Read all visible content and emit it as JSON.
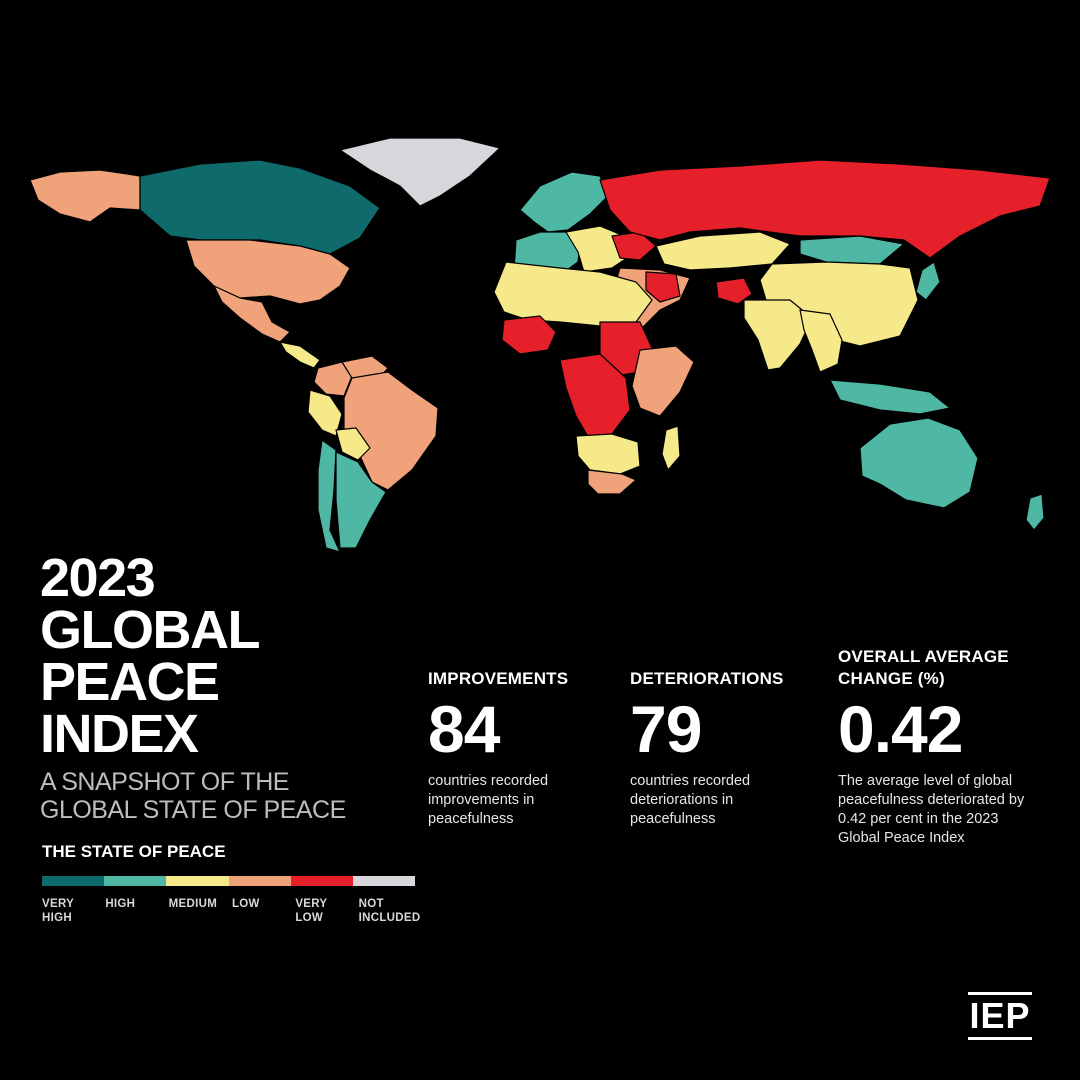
{
  "title_lines": [
    "2023",
    "GLOBAL",
    "PEACE",
    "INDEX"
  ],
  "subtitle_lines": [
    "A SNAPSHOT OF THE",
    "GLOBAL STATE OF PEACE"
  ],
  "legend": {
    "title": "THE STATE OF PEACE",
    "categories": [
      {
        "label": "VERY\nHIGH",
        "color": "#0f6b6b"
      },
      {
        "label": "HIGH",
        "color": "#4fb8a4"
      },
      {
        "label": "MEDIUM",
        "color": "#f5e98a"
      },
      {
        "label": "LOW",
        "color": "#f0a27a"
      },
      {
        "label": "VERY\nLOW",
        "color": "#e5202a"
      },
      {
        "label": "NOT\nINCLUDED",
        "color": "#d8d5db"
      }
    ]
  },
  "stats": {
    "improvements": {
      "heading": "IMPROVEMENTS",
      "value": "84",
      "description": "countries recorded\nimprovements in\npeacefulness"
    },
    "deteriorations": {
      "heading": "DETERIORATIONS",
      "value": "79",
      "description": "countries recorded\ndeteriorations in\npeacefulness"
    },
    "overall": {
      "heading": "OVERALL AVERAGE\nCHANGE (%)",
      "value": "0.42",
      "description": "The average level of global\npeacefulness deteriorated by\n0.42 per cent in the 2023\nGlobal Peace Index"
    }
  },
  "logo": {
    "text": "IEP"
  },
  "map": {
    "regions": [
      {
        "name": "alaska",
        "level": "LOW"
      },
      {
        "name": "canada",
        "level": "VERY HIGH"
      },
      {
        "name": "greenland",
        "level": "NOT INCLUDED"
      },
      {
        "name": "usa",
        "level": "LOW"
      },
      {
        "name": "mexico",
        "level": "LOW"
      },
      {
        "name": "central-america",
        "level": "MEDIUM"
      },
      {
        "name": "colombia",
        "level": "LOW"
      },
      {
        "name": "venezuela",
        "level": "LOW"
      },
      {
        "name": "brazil",
        "level": "LOW"
      },
      {
        "name": "peru",
        "level": "MEDIUM"
      },
      {
        "name": "bolivia",
        "level": "MEDIUM"
      },
      {
        "name": "chile",
        "level": "HIGH"
      },
      {
        "name": "argentina",
        "level": "HIGH"
      },
      {
        "name": "scandinavia",
        "level": "HIGH"
      },
      {
        "name": "western-europe",
        "level": "HIGH"
      },
      {
        "name": "eastern-europe",
        "level": "MEDIUM"
      },
      {
        "name": "ukraine",
        "level": "VERY LOW"
      },
      {
        "name": "russia",
        "level": "VERY LOW"
      },
      {
        "name": "kazakhstan",
        "level": "MEDIUM"
      },
      {
        "name": "mongolia",
        "level": "HIGH"
      },
      {
        "name": "china",
        "level": "MEDIUM"
      },
      {
        "name": "japan",
        "level": "HIGH"
      },
      {
        "name": "middle-east",
        "level": "LOW"
      },
      {
        "name": "iraq-syria",
        "level": "VERY LOW"
      },
      {
        "name": "afghanistan",
        "level": "VERY LOW"
      },
      {
        "name": "india",
        "level": "MEDIUM"
      },
      {
        "name": "southeast-asia",
        "level": "MEDIUM"
      },
      {
        "name": "indonesia",
        "level": "HIGH"
      },
      {
        "name": "north-africa",
        "level": "MEDIUM"
      },
      {
        "name": "sahel",
        "level": "VERY LOW"
      },
      {
        "name": "sudan",
        "level": "VERY LOW"
      },
      {
        "name": "central-africa",
        "level": "VERY LOW"
      },
      {
        "name": "east-africa",
        "level": "LOW"
      },
      {
        "name": "southern-africa",
        "level": "MEDIUM"
      },
      {
        "name": "south-africa",
        "level": "LOW"
      },
      {
        "name": "madagascar",
        "level": "MEDIUM"
      },
      {
        "name": "australia",
        "level": "HIGH"
      },
      {
        "name": "new-zealand",
        "level": "HIGH"
      }
    ]
  }
}
